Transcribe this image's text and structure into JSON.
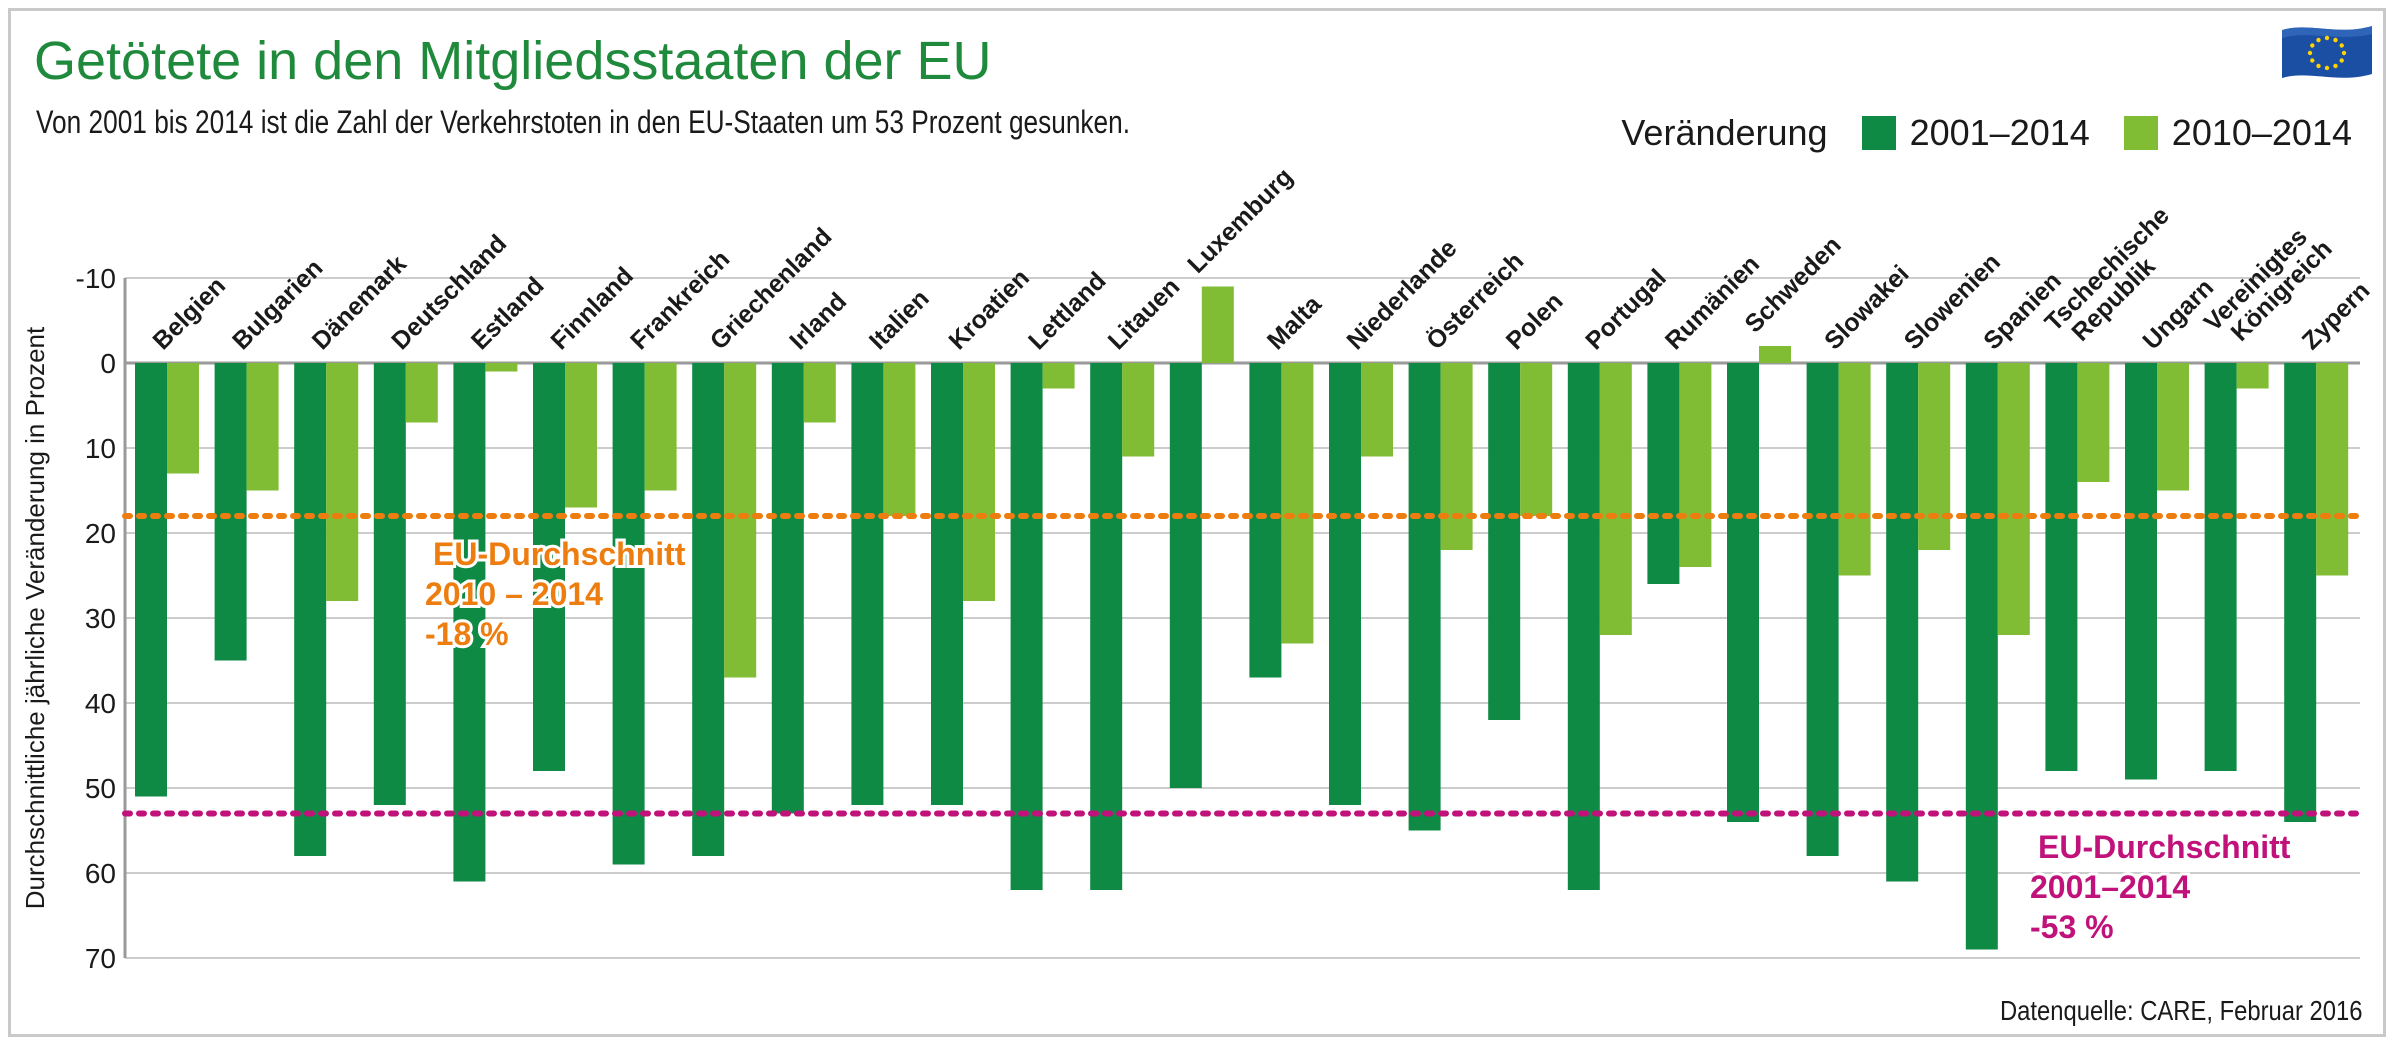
{
  "header": {
    "title": "Getötete in den Mitgliedsstaaten der EU",
    "subtitle": "Von 2001 bis 2014 ist die Zahl der Verkehrstoten in den EU-Staaten um 53 Prozent gesunken."
  },
  "legend": {
    "label": "Veränderung",
    "items": [
      "2001–2014",
      "2010–2014"
    ]
  },
  "source": "Datenquelle: CARE, Februar 2016",
  "colors": {
    "series_2001": "#0f8a45",
    "series_2010": "#80bc34",
    "avg_2010": "#ee7d10",
    "avg_2001": "#c0127a",
    "title": "#1f8a3c"
  },
  "chart_data": {
    "type": "bar",
    "title": "Getötete in den Mitgliedsstaaten der EU",
    "ylabel": "Durchschnittliche jährliche Veränderung in Prozent",
    "ylim": [
      -10,
      70
    ],
    "yticks": [
      -10,
      0,
      10,
      20,
      30,
      40,
      50,
      60,
      70
    ],
    "y_inverted": true,
    "categories": [
      "Belgien",
      "Bulgarien",
      "Dänemark",
      "Deutschland",
      "Estland",
      "Finnland",
      "Frankreich",
      "Griechenland",
      "Irland",
      "Italien",
      "Kroatien",
      "Lettland",
      "Litauen",
      "Luxemburg",
      "Malta",
      "Niederlande",
      "Österreich",
      "Polen",
      "Portugal",
      "Rumänien",
      "Schweden",
      "Slowakei",
      "Slowenien",
      "Spanien",
      "Tschechische Republik",
      "Ungarn",
      "Vereinigtes Königreich",
      "Zypern"
    ],
    "series": [
      {
        "name": "2001–2014",
        "values": [
          51,
          35,
          58,
          52,
          61,
          48,
          59,
          58,
          53,
          52,
          52,
          62,
          62,
          50,
          37,
          52,
          55,
          42,
          62,
          26,
          54,
          58,
          61,
          69,
          48,
          49,
          48,
          54
        ]
      },
      {
        "name": "2010–2014",
        "values": [
          13,
          15,
          28,
          7,
          1,
          17,
          15,
          37,
          7,
          18,
          28,
          3,
          11,
          -9,
          33,
          11,
          22,
          18,
          32,
          24,
          -2,
          25,
          22,
          32,
          14,
          15,
          3,
          25
        ]
      }
    ],
    "reference_lines": [
      {
        "name": "EU-Durchschnitt 2010–2014",
        "value": 18,
        "label_lines": [
          "EU-Durchschnitt",
          "2010 – 2014",
          "-18 %"
        ]
      },
      {
        "name": "EU-Durchschnitt 2001–2014",
        "value": 53,
        "label_lines": [
          "EU-Durchschnitt",
          "2001–2014",
          "-53 %"
        ]
      }
    ]
  }
}
